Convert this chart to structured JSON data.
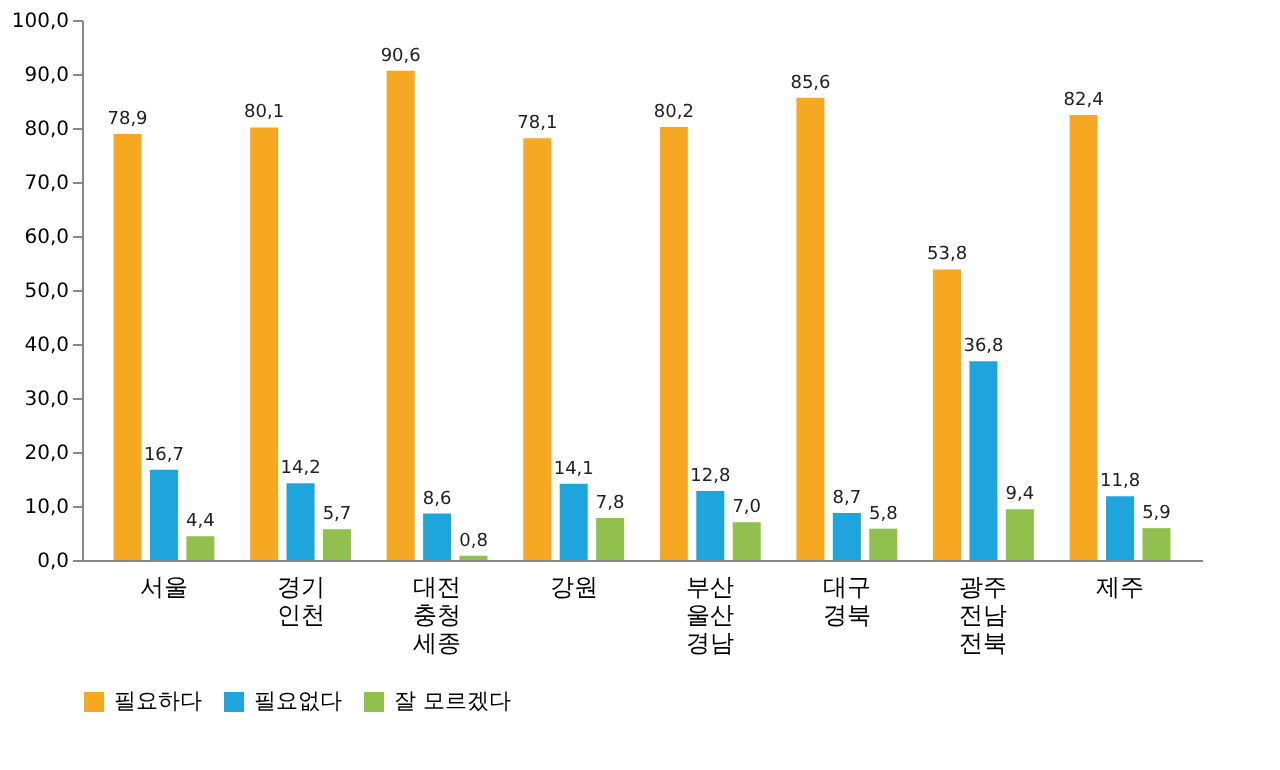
{
  "chart_data": {
    "type": "bar",
    "categories": [
      "서울",
      "경기\n인천",
      "대전\n충청\n세종",
      "강원",
      "부산\n울산\n경남",
      "대구\n경북",
      "광주\n전남\n전북",
      "제주"
    ],
    "series": [
      {
        "name": "필요하다",
        "color": "#f7a823",
        "values": [
          78.9,
          80.1,
          90.6,
          78.1,
          80.2,
          85.6,
          53.8,
          82.4
        ],
        "value_labels": [
          "78,9",
          "80,1",
          "90,6",
          "78,1",
          "80,2",
          "85,6",
          "53,8",
          "82,4"
        ]
      },
      {
        "name": "필요없다",
        "color": "#1ea5dc",
        "values": [
          16.7,
          14.2,
          8.6,
          14.1,
          12.8,
          8.7,
          36.8,
          11.8
        ],
        "value_labels": [
          "16,7",
          "14,2",
          "8,6",
          "14,1",
          "12,8",
          "8,7",
          "36,8",
          "11,8"
        ]
      },
      {
        "name": "잘 모르겠다",
        "color": "#92c04e",
        "values": [
          4.4,
          5.7,
          0.8,
          7.8,
          7.0,
          5.8,
          9.4,
          5.9
        ],
        "value_labels": [
          "4,4",
          "5,7",
          "0,8",
          "7,8",
          "7,0",
          "5,8",
          "9,4",
          "5,9"
        ]
      }
    ],
    "ylim": [
      0,
      100
    ],
    "yticks": [
      {
        "value": 0,
        "label": "0,0"
      },
      {
        "value": 10,
        "label": "10,0"
      },
      {
        "value": 20,
        "label": "20,0"
      },
      {
        "value": 30,
        "label": "30,0"
      },
      {
        "value": 40,
        "label": "40,0"
      },
      {
        "value": 50,
        "label": "50,0"
      },
      {
        "value": 60,
        "label": "60,0"
      },
      {
        "value": 70,
        "label": "70,0"
      },
      {
        "value": 80,
        "label": "80,0"
      },
      {
        "value": 90,
        "label": "90,0"
      },
      {
        "value": 100,
        "label": "100,0"
      }
    ],
    "grid": false,
    "legend": "bottom"
  }
}
